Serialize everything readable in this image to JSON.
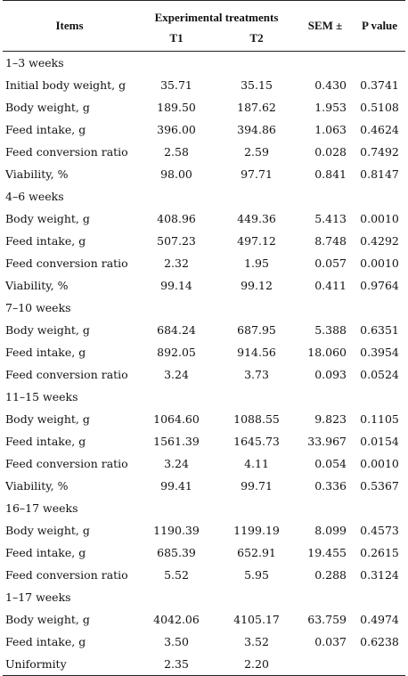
{
  "header": {
    "items": "Items",
    "experimental": "Experimental treatments",
    "t1": "T1",
    "t2": "T2",
    "sem": "SEM ±",
    "p": "P value"
  },
  "sections": [
    {
      "title": "1–3 weeks",
      "rows": [
        {
          "item": "Initial body weight, g",
          "t1": "35.71",
          "t2": "35.15",
          "sem": "0.430",
          "p": "0.3741"
        },
        {
          "item": "Body weight, g",
          "t1": "189.50",
          "t2": "187.62",
          "sem": "1.953",
          "p": "0.5108"
        },
        {
          "item": "Feed intake, g",
          "t1": "396.00",
          "t2": "394.86",
          "sem": "1.063",
          "p": "0.4624"
        },
        {
          "item": "Feed conversion ratio",
          "t1": "2.58",
          "t2": "2.59",
          "sem": "0.028",
          "p": "0.7492"
        },
        {
          "item": "Viability, %",
          "t1": "98.00",
          "t2": "97.71",
          "sem": "0.841",
          "p": "0.8147"
        }
      ]
    },
    {
      "title": "4–6 weeks",
      "rows": [
        {
          "item": "Body weight, g",
          "t1": "408.96",
          "t2": "449.36",
          "sem": "5.413",
          "p": "0.0010"
        },
        {
          "item": "Feed intake, g",
          "t1": "507.23",
          "t2": "497.12",
          "sem": "8.748",
          "p": "0.4292"
        },
        {
          "item": "Feed conversion ratio",
          "t1": "2.32",
          "t2": "1.95",
          "sem": "0.057",
          "p": "0.0010"
        },
        {
          "item": "Viability, %",
          "t1": "99.14",
          "t2": "99.12",
          "sem": "0.411",
          "p": "0.9764"
        }
      ]
    },
    {
      "title": "7–10 weeks",
      "rows": [
        {
          "item": "Body weight, g",
          "t1": "684.24",
          "t2": "687.95",
          "sem": "5.388",
          "p": "0.6351"
        },
        {
          "item": "Feed intake, g",
          "t1": "892.05",
          "t2": "914.56",
          "sem": "18.060",
          "p": "0.3954"
        },
        {
          "item": "Feed conversion ratio",
          "t1": "3.24",
          "t2": "3.73",
          "sem": "0.093",
          "p": "0.0524"
        }
      ]
    },
    {
      "title": "11–15 weeks",
      "rows": [
        {
          "item": "Body weight, g",
          "t1": "1064.60",
          "t2": "1088.55",
          "sem": "9.823",
          "p": "0.1105"
        },
        {
          "item": "Feed intake, g",
          "t1": "1561.39",
          "t2": "1645.73",
          "sem": "33.967",
          "p": "0.0154"
        },
        {
          "item": "Feed conversion ratio",
          "t1": "3.24",
          "t2": "4.11",
          "sem": "0.054",
          "p": "0.0010"
        },
        {
          "item": "Viability, %",
          "t1": "99.41",
          "t2": "99.71",
          "sem": "0.336",
          "p": "0.5367"
        }
      ]
    },
    {
      "title": "16–17 weeks",
      "rows": [
        {
          "item": "Body weight, g",
          "t1": "1190.39",
          "t2": "1199.19",
          "sem": "8.099",
          "p": "0.4573"
        },
        {
          "item": "Feed intake, g",
          "t1": "685.39",
          "t2": "652.91",
          "sem": "19.455",
          "p": "0.2615"
        },
        {
          "item": "Feed conversion ratio",
          "t1": "5.52",
          "t2": "5.95",
          "sem": "0.288",
          "p": "0.3124"
        }
      ]
    },
    {
      "title": "1–17 weeks",
      "rows": [
        {
          "item": "Body weight, g",
          "t1": "4042.06",
          "t2": "4105.17",
          "sem": "63.759",
          "p": "0.4974"
        },
        {
          "item": "Feed intake, g",
          "t1": "3.50",
          "t2": "3.52",
          "sem": "0.037",
          "p": "0.6238"
        },
        {
          "item": "Uniformity",
          "t1": "2.35",
          "t2": "2.20",
          "sem": "",
          "p": ""
        }
      ]
    }
  ]
}
